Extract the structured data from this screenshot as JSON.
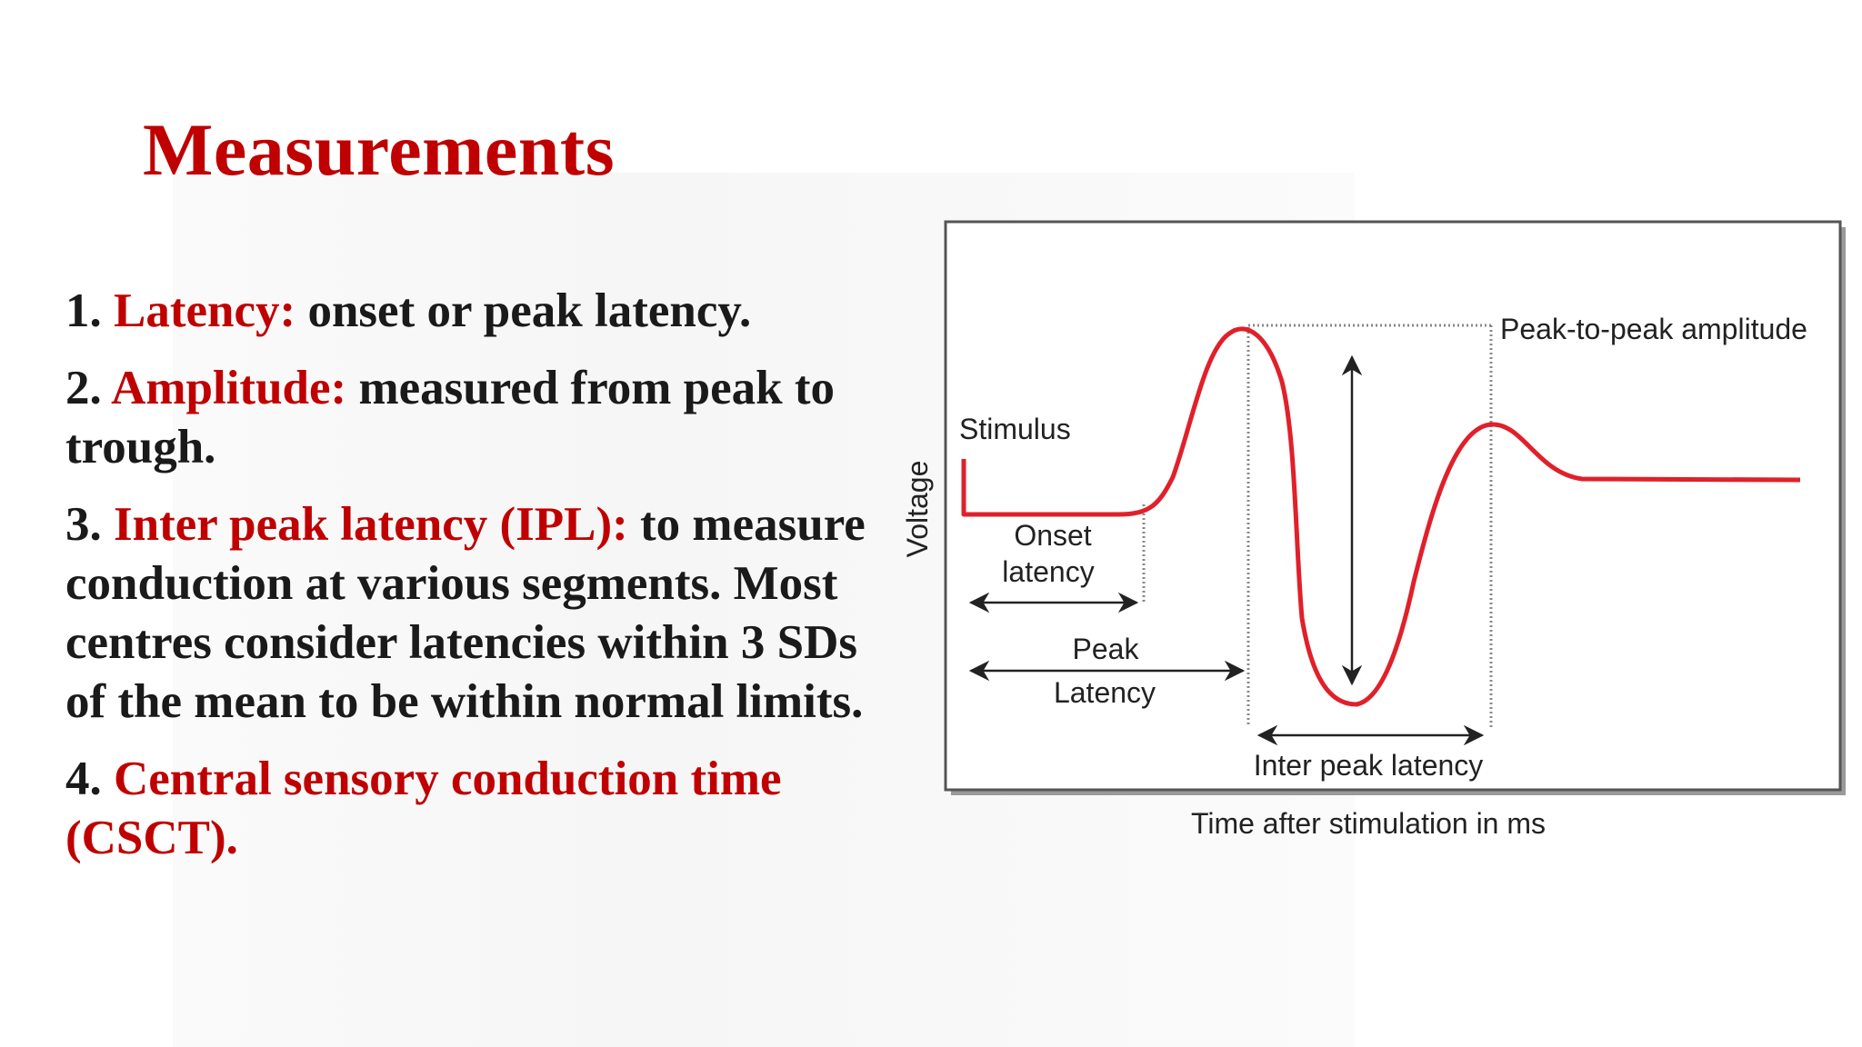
{
  "slide": {
    "title": "Measurements",
    "points": [
      {
        "number": "1.",
        "term": "Latency:",
        "text": "onset or peak latency."
      },
      {
        "number": "2.",
        "term": "Amplitude:",
        "text": "measured from peak to trough."
      },
      {
        "number": "3.",
        "term": "Inter peak latency (IPL):",
        "text": "to measure conduction at various segments. Most centres consider latencies within 3 SDs of the mean to be within normal limits."
      },
      {
        "number": "4.",
        "term": "Central sensory conduction time (CSCT).",
        "text": ""
      }
    ]
  },
  "diagram": {
    "y_axis_label": "Voltage",
    "x_axis_label": "Time after stimulation in ms",
    "labels": {
      "stimulus": "Stimulus",
      "onset_line1": "Onset",
      "onset_line2": "latency",
      "peak_line1": "Peak",
      "peak_line2": "Latency",
      "peak_to_peak": "Peak-to-peak amplitude",
      "inter_peak": "Inter peak latency"
    },
    "colors": {
      "waveform": "#e0202a",
      "frame": "#555555",
      "accent_text": "#c00000"
    }
  }
}
